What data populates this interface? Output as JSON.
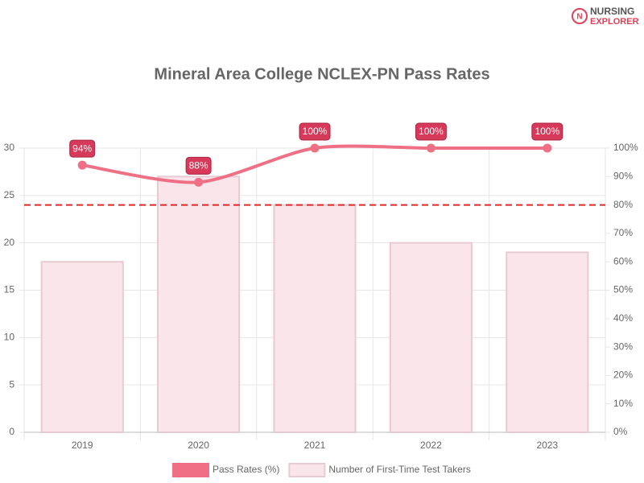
{
  "logo": {
    "line1": "NURSING",
    "line2": "EXPLORER"
  },
  "chart_data": {
    "type": "bar-line",
    "title": "Mineral Area College NCLEX-PN Pass Rates",
    "categories": [
      "2019",
      "2020",
      "2021",
      "2022",
      "2023"
    ],
    "series": [
      {
        "name": "Pass Rates (%)",
        "type": "line",
        "axis": "y2",
        "color": "#ef6f85",
        "values": [
          94,
          88,
          100,
          100,
          100
        ],
        "value_labels": [
          "94%",
          "88%",
          "100%",
          "100%",
          "100%"
        ]
      },
      {
        "name": "Number of First-Time Test Takers",
        "type": "bar",
        "color": "#f9e5ea",
        "border_color": "#e6cbd2",
        "values": [
          18,
          27,
          24,
          20,
          19
        ]
      }
    ],
    "reference_line": {
      "value": 80,
      "axis": "y2",
      "color": "#e02828"
    },
    "ylim": [
      0,
      30
    ],
    "yticks": [
      0,
      5,
      10,
      15,
      20,
      25,
      30
    ],
    "y2lim": [
      0,
      100
    ],
    "y2ticks": [
      {
        "value": 0,
        "label": "0%"
      },
      {
        "value": 10,
        "label": "10%"
      },
      {
        "value": 20,
        "label": "20%"
      },
      {
        "value": 30,
        "label": "30%"
      },
      {
        "value": 40,
        "label": "40%"
      },
      {
        "value": 50,
        "label": "50%"
      },
      {
        "value": 60,
        "label": "60%"
      },
      {
        "value": 70,
        "label": "70%"
      },
      {
        "value": 80,
        "label": "80%"
      },
      {
        "value": 90,
        "label": "90%"
      },
      {
        "value": 100,
        "label": "100%"
      }
    ],
    "grid": true,
    "legend": "bottom"
  }
}
